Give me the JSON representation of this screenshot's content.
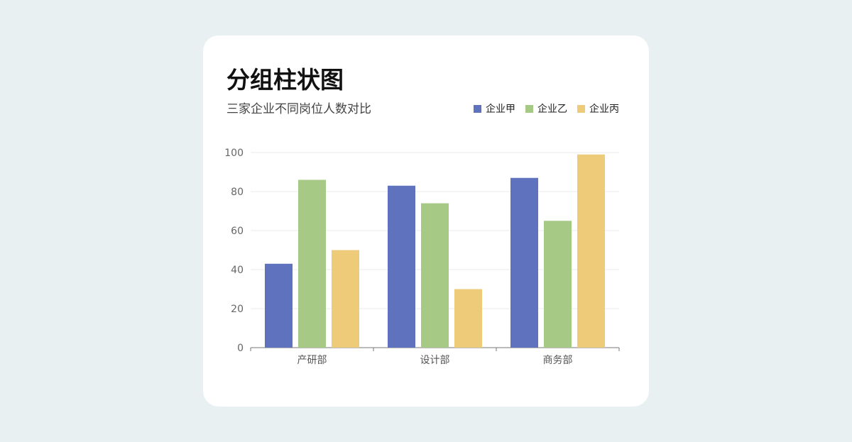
{
  "chart_data": {
    "type": "bar",
    "title": "分组柱状图",
    "subtitle": "三家企业不同岗位人数对比",
    "categories": [
      "产研部",
      "设计部",
      "商务部"
    ],
    "series": [
      {
        "name": "企业甲",
        "color": "#5f72bd",
        "values": [
          43,
          83,
          87
        ]
      },
      {
        "name": "企业乙",
        "color": "#a6c986",
        "values": [
          86,
          74,
          65
        ]
      },
      {
        "name": "企业丙",
        "color": "#eecb78",
        "values": [
          50,
          30,
          99
        ]
      }
    ],
    "ylim": [
      0,
      100
    ],
    "yticks": [
      "0",
      "20",
      "40",
      "60",
      "80",
      "100"
    ],
    "grid": true,
    "legend": "top-right"
  }
}
